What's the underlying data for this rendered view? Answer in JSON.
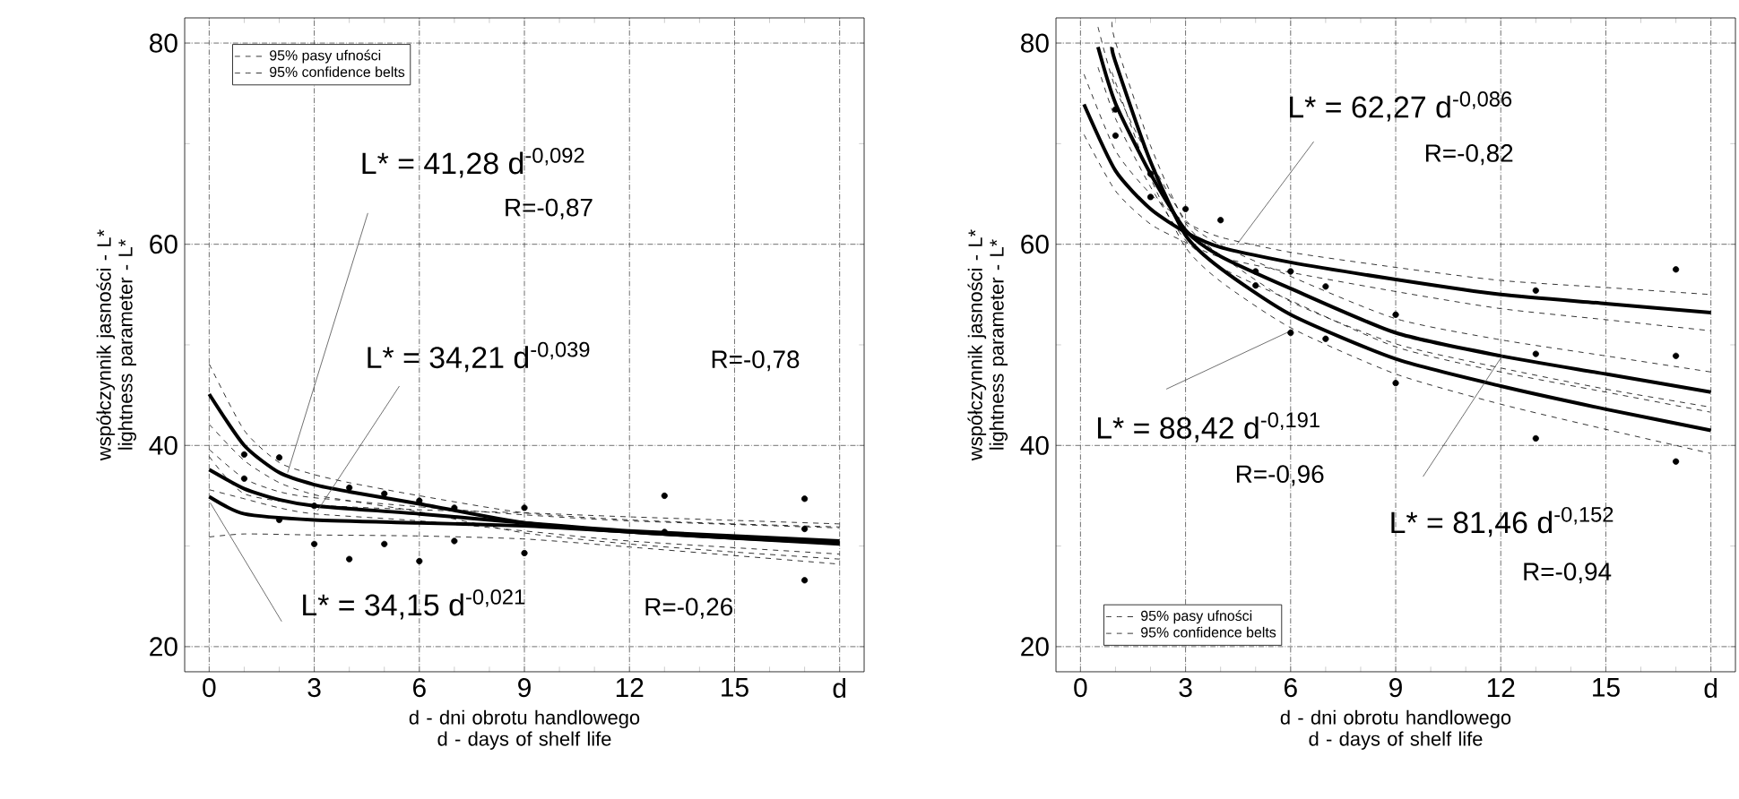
{
  "chart_data": [
    {
      "type": "line",
      "xlabel": "d - dni obrotu handlowego d - days of shelf life",
      "ylabel": "współczynnik jasności - L* lightness parameter - L*",
      "xlim": [
        -0.7,
        18.7
      ],
      "ylim": [
        17.5,
        82.5
      ],
      "xticks": [
        0,
        3,
        6,
        9,
        12,
        15,
        {
          "value": 18,
          "label": "d"
        }
      ],
      "yticks": [
        20,
        40,
        60,
        80
      ],
      "grid": true,
      "legend": "top left",
      "annotations": [
        {
          "text": "L* = 41,28 d$^{-0,092}$",
          "x": 2.24,
          "y": 37.3
        },
        "R=-0,87",
        {
          "text": "L* = 34,21 d$^{-0,039}$",
          "x": 3.09,
          "y": 33.5
        },
        "R=-0,78",
        {
          "text": "L* = 34,15 d$^{-0,021}$",
          "x": 0.03,
          "y": 34.3
        },
        "R=-0,26"
      ],
      "series": [
        {
          "color": "#000000",
          "x": [
            0,
            1,
            2,
            3,
            4,
            6,
            9,
            12,
            15,
            18
          ],
          "values": [
            45.1,
            40.0,
            37.3,
            36.1,
            35.4,
            34.2,
            32.3,
            31.4,
            30.8,
            30.3
          ]
        },
        {
          "name": "95% pasy ufności",
          "line_style": "dashed",
          "color": "#000000",
          "x": [
            0,
            1,
            2,
            3,
            4,
            6,
            9,
            12,
            15,
            18
          ],
          "values": [
            48.1,
            41.5,
            38.3,
            37.1,
            36.3,
            35.0,
            33.3,
            32.6,
            32.2,
            31.9
          ]
        },
        {
          "name": "95% confidence belts",
          "line_style": "dashed",
          "color": "#000000",
          "x": [
            0,
            1,
            2,
            3,
            4,
            6,
            9,
            12,
            15,
            18
          ],
          "values": [
            42.1,
            38.5,
            36.3,
            35.1,
            34.5,
            33.4,
            31.3,
            30.2,
            29.4,
            28.7
          ]
        },
        {
          "color": "#000000",
          "x": [
            0,
            1,
            2,
            3,
            6,
            9,
            12,
            18
          ],
          "values": [
            37.6,
            35.7,
            34.6,
            34.0,
            33.2,
            32.3,
            31.5,
            30.5
          ]
        },
        {
          "line_style": "dashed",
          "color": "#000000",
          "x": [
            0,
            1,
            2,
            3,
            6,
            9,
            12,
            18
          ],
          "values": [
            39.6,
            36.7,
            35.4,
            34.8,
            33.9,
            33.1,
            32.5,
            31.8
          ]
        },
        {
          "line_style": "dashed",
          "color": "#000000",
          "x": [
            0,
            1,
            2,
            3,
            6,
            9,
            12,
            18
          ],
          "values": [
            35.6,
            34.7,
            33.8,
            33.2,
            32.5,
            31.5,
            30.5,
            29.2
          ]
        },
        {
          "color": "#000000",
          "x": [
            0,
            1,
            3,
            6,
            9,
            12,
            18
          ],
          "values": [
            34.9,
            33.2,
            32.6,
            32.3,
            32.0,
            31.4,
            30.2
          ]
        },
        {
          "line_style": "dashed",
          "color": "#000000",
          "x": [
            0,
            1,
            3,
            6,
            9,
            12,
            18
          ],
          "values": [
            38.9,
            35.2,
            34.1,
            33.6,
            33.3,
            32.9,
            32.2
          ]
        },
        {
          "line_style": "dashed",
          "color": "#000000",
          "x": [
            0,
            1,
            3,
            6,
            9,
            12,
            18
          ],
          "values": [
            30.9,
            31.2,
            31.1,
            31.0,
            30.7,
            29.9,
            28.2
          ]
        },
        {
          "type": "scatter",
          "marker": "circle",
          "color": "#000000",
          "x": [
            1,
            1,
            2,
            2,
            3,
            3,
            4,
            4,
            5,
            5,
            6,
            6,
            7,
            7,
            9,
            9,
            13,
            13,
            17,
            17,
            17
          ],
          "values": [
            39.1,
            36.7,
            32.6,
            38.8,
            30.2,
            34.0,
            28.7,
            35.8,
            30.2,
            35.2,
            28.5,
            34.5,
            30.5,
            33.8,
            29.3,
            33.8,
            35.0,
            31.4,
            34.7,
            31.7,
            26.6
          ]
        }
      ]
    },
    {
      "type": "line",
      "xlabel": "d - dni obrotu handlowego d - days of shelf life",
      "ylabel": "współczynnik jasności - L* lightness parameter - L*",
      "xlim": [
        -0.7,
        18.7
      ],
      "ylim": [
        17.5,
        82.5
      ],
      "xticks": [
        0,
        3,
        6,
        9,
        12,
        15,
        {
          "value": 18,
          "label": "d"
        }
      ],
      "yticks": [
        20,
        40,
        60,
        80
      ],
      "grid": true,
      "legend": "bottom left",
      "annotations": [
        {
          "text": "L* = 62,27 d$^{-0,086}$",
          "x": 4.47,
          "y": 60.0
        },
        "R=-0,82",
        {
          "text": "L* = 88,42 d$^{-0,191}$",
          "x": 6.07,
          "y": 51.5
        },
        "R=-0,96",
        {
          "text": "L* = 81,46 d$^{-0,152}$",
          "x": 12.06,
          "y": 49.0
        },
        "R=-0,94"
      ],
      "series": [
        {
          "color": "#000000",
          "x": [
            0.1,
            1,
            2,
            3,
            4,
            6,
            9,
            12,
            15,
            18
          ],
          "values": [
            73.9,
            67.3,
            63.5,
            61.2,
            59.7,
            58.2,
            56.5,
            55.0,
            54.1,
            53.2
          ]
        },
        {
          "name": "95% pasy ufności",
          "line_style": "dashed",
          "color": "#000000",
          "x": [
            0.1,
            1,
            2,
            3,
            4,
            6,
            9,
            12,
            15,
            18
          ],
          "values": [
            76.9,
            69.3,
            65.0,
            62.2,
            60.7,
            59.2,
            57.7,
            56.4,
            55.7,
            55.0
          ]
        },
        {
          "name": "95% confidence belts",
          "line_style": "dashed",
          "color": "#000000",
          "x": [
            0.1,
            1,
            2,
            3,
            4,
            6,
            9,
            12,
            15,
            18
          ],
          "values": [
            70.9,
            65.3,
            62.0,
            60.2,
            58.7,
            57.2,
            55.3,
            53.6,
            52.5,
            51.4
          ]
        },
        {
          "color": "#000000",
          "x": [
            0.5,
            1,
            2,
            3,
            4,
            6,
            9,
            12,
            15,
            18
          ],
          "values": [
            79.6,
            74.0,
            67.0,
            61.4,
            58.8,
            55.6,
            51.2,
            48.9,
            47.1,
            45.3
          ]
        },
        {
          "line_style": "dashed",
          "color": "#000000",
          "x": [
            0.5,
            1,
            2,
            3,
            4,
            6,
            9,
            12,
            15,
            18
          ],
          "values": [
            81.6,
            75.5,
            68.3,
            62.4,
            59.9,
            56.8,
            52.6,
            50.5,
            48.9,
            47.3
          ]
        },
        {
          "line_style": "dashed",
          "color": "#000000",
          "x": [
            0.5,
            1,
            2,
            3,
            4,
            6,
            9,
            12,
            15,
            18
          ],
          "values": [
            77.6,
            72.5,
            65.7,
            60.4,
            57.7,
            54.4,
            49.8,
            47.3,
            45.3,
            43.3
          ]
        },
        {
          "color": "#000000",
          "x": [
            0.9,
            1,
            2,
            3,
            4,
            6,
            9,
            12,
            15,
            18
          ],
          "values": [
            79.6,
            78.1,
            68.2,
            60.9,
            57.6,
            53.0,
            48.6,
            45.9,
            43.6,
            41.5
          ]
        },
        {
          "line_style": "dashed",
          "color": "#000000",
          "x": [
            0.9,
            1,
            2,
            3,
            4,
            6,
            9,
            12,
            15,
            18
          ],
          "values": [
            82.1,
            80.1,
            69.8,
            62.1,
            58.9,
            54.3,
            50.1,
            47.7,
            45.6,
            43.8
          ]
        },
        {
          "line_style": "dashed",
          "color": "#000000",
          "x": [
            0.9,
            1,
            2,
            3,
            4,
            6,
            9,
            12,
            15,
            18
          ],
          "values": [
            77.1,
            76.1,
            66.6,
            59.7,
            56.3,
            51.7,
            47.1,
            44.1,
            41.6,
            39.2
          ]
        },
        {
          "type": "scatter",
          "marker": "circle",
          "color": "#000000",
          "x": [
            1,
            1,
            2,
            2,
            3,
            4,
            5,
            5,
            6,
            6,
            7,
            7,
            9,
            9,
            13,
            13,
            13,
            17,
            17,
            17
          ],
          "values": [
            70.8,
            73.4,
            67.0,
            64.7,
            63.5,
            62.4,
            57.3,
            55.9,
            57.3,
            51.2,
            55.8,
            50.6,
            53.0,
            46.2,
            55.4,
            49.1,
            40.7,
            57.5,
            48.9,
            38.4
          ]
        }
      ]
    }
  ]
}
